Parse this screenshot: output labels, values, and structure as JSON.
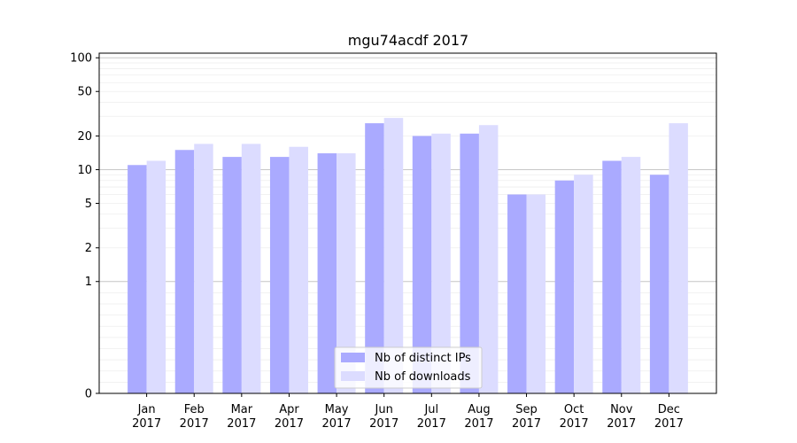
{
  "chart_data": {
    "type": "bar",
    "title": "mgu74acdf 2017",
    "xlabel": "",
    "ylabel": "",
    "yscale": "symlog",
    "ylim": [
      0,
      110
    ],
    "yticks": [
      0,
      1,
      2,
      5,
      10,
      20,
      50,
      100
    ],
    "grid": true,
    "legend_position": "bottom-center",
    "categories": [
      [
        "Jan",
        "2017"
      ],
      [
        "Feb",
        "2017"
      ],
      [
        "Mar",
        "2017"
      ],
      [
        "Apr",
        "2017"
      ],
      [
        "May",
        "2017"
      ],
      [
        "Jun",
        "2017"
      ],
      [
        "Jul",
        "2017"
      ],
      [
        "Aug",
        "2017"
      ],
      [
        "Sep",
        "2017"
      ],
      [
        "Oct",
        "2017"
      ],
      [
        "Nov",
        "2017"
      ],
      [
        "Dec",
        "2017"
      ]
    ],
    "series": [
      {
        "name": "Nb of distinct IPs",
        "color": "#aaaaff",
        "values": [
          11,
          15,
          13,
          13,
          14,
          26,
          20,
          21,
          6,
          8,
          12,
          9
        ]
      },
      {
        "name": "Nb of downloads",
        "color": "#dcdcff",
        "values": [
          12,
          17,
          17,
          16,
          14,
          29,
          21,
          25,
          6,
          9,
          13,
          26
        ]
      }
    ]
  }
}
